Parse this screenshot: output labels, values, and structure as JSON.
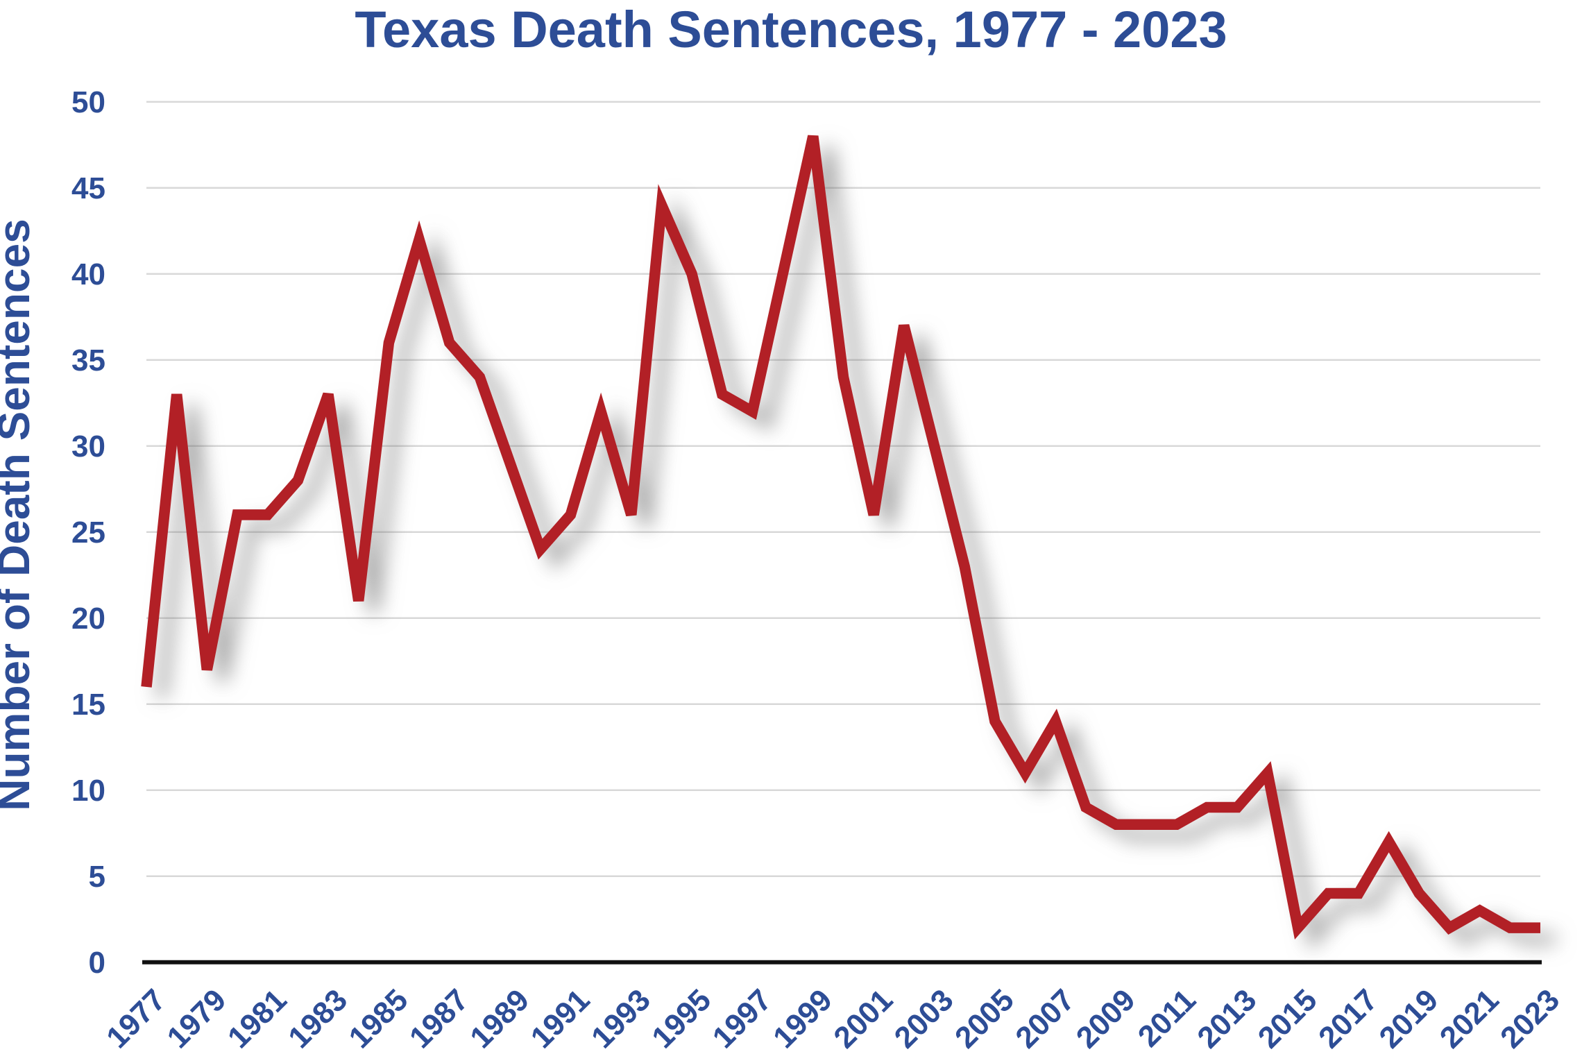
{
  "title": "Texas Death Sentences, 1977 - 2023",
  "chart_data": {
    "type": "line",
    "title": "Texas Death Sentences, 1977 - 2023",
    "xlabel": "",
    "ylabel": "Number of Death Sentences",
    "years": [
      1977,
      1978,
      1979,
      1980,
      1981,
      1982,
      1983,
      1984,
      1985,
      1986,
      1987,
      1988,
      1989,
      1990,
      1991,
      1992,
      1993,
      1994,
      1995,
      1996,
      1997,
      1998,
      1999,
      2000,
      2001,
      2002,
      2003,
      2004,
      2005,
      2006,
      2007,
      2008,
      2009,
      2010,
      2011,
      2012,
      2013,
      2014,
      2015,
      2016,
      2017,
      2018,
      2019,
      2020,
      2021,
      2022,
      2023
    ],
    "values": [
      16,
      33,
      17,
      26,
      26,
      28,
      33,
      21,
      36,
      42,
      36,
      34,
      29,
      24,
      26,
      32,
      26,
      44,
      40,
      33,
      32,
      40,
      48,
      34,
      26,
      37,
      30,
      23,
      14,
      11,
      14,
      9,
      8,
      8,
      8,
      9,
      9,
      11,
      2,
      4,
      4,
      7,
      4,
      2,
      3,
      2,
      2
    ],
    "x_tick_labels": [
      "1977",
      "1979",
      "1981",
      "1983",
      "1985",
      "1987",
      "1989",
      "1991",
      "1993",
      "1995",
      "1997",
      "1999",
      "2001",
      "2003",
      "2005",
      "2007",
      "2009",
      "2011",
      "2013",
      "2015",
      "2017",
      "2019",
      "2021",
      "2023"
    ],
    "yticks": [
      0,
      5,
      10,
      15,
      20,
      25,
      30,
      35,
      40,
      45,
      50
    ],
    "ylim": [
      0,
      50
    ],
    "grid": "horizontal",
    "legend": "none",
    "colors": {
      "line": "#b22026",
      "text": "#2d4d96",
      "gridline": "#d8d8d8",
      "axis": "#111111",
      "background": "#ffffff"
    }
  }
}
